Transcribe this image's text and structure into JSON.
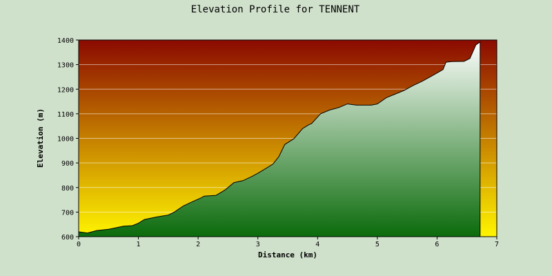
{
  "chart_data": {
    "type": "area",
    "title": "Elevation Profile for TENNENT",
    "xlabel": "Distance (km)",
    "ylabel": "Elevation (m)",
    "xlim": [
      0,
      7
    ],
    "ylim": [
      600,
      1400
    ],
    "x_ticks": [
      "0",
      "1",
      "2",
      "3",
      "4",
      "5",
      "6",
      "7"
    ],
    "y_ticks": [
      "600",
      "700",
      "800",
      "900",
      "1000",
      "1100",
      "1200",
      "1300",
      "1400"
    ],
    "grid": true,
    "legend": "none",
    "colors": {
      "page_background": "#cfe0cb",
      "background_top": "#8b0a00",
      "background_bottom": "#fff500",
      "fill_top": "#ffffff",
      "fill_bottom": "#0b6b0b",
      "outline": "#000000"
    },
    "series": [
      {
        "x": [
          0,
          0.15,
          0.3,
          0.5,
          0.6,
          0.75,
          0.9,
          1.0,
          1.1,
          1.3,
          1.5,
          1.6,
          1.75,
          1.9,
          2.05,
          2.1,
          2.3,
          2.45,
          2.6,
          2.75,
          2.9,
          3.0,
          3.15,
          3.25,
          3.35,
          3.45,
          3.6,
          3.75,
          3.85,
          3.9,
          4.05,
          4.2,
          4.35,
          4.5,
          4.65,
          4.8,
          4.9,
          5.0,
          5.15,
          5.3,
          5.45,
          5.6,
          5.75,
          5.9,
          6.1,
          6.15,
          6.25,
          6.45,
          6.55,
          6.65,
          6.72
        ],
        "y": [
          620,
          615,
          625,
          630,
          635,
          643,
          645,
          655,
          670,
          680,
          688,
          700,
          725,
          742,
          758,
          765,
          768,
          790,
          820,
          828,
          845,
          858,
          880,
          895,
          925,
          975,
          998,
          1040,
          1055,
          1060,
          1100,
          1115,
          1125,
          1140,
          1135,
          1135,
          1135,
          1140,
          1165,
          1180,
          1195,
          1215,
          1232,
          1252,
          1280,
          1310,
          1312,
          1313,
          1325,
          1380,
          1392
        ]
      }
    ]
  }
}
